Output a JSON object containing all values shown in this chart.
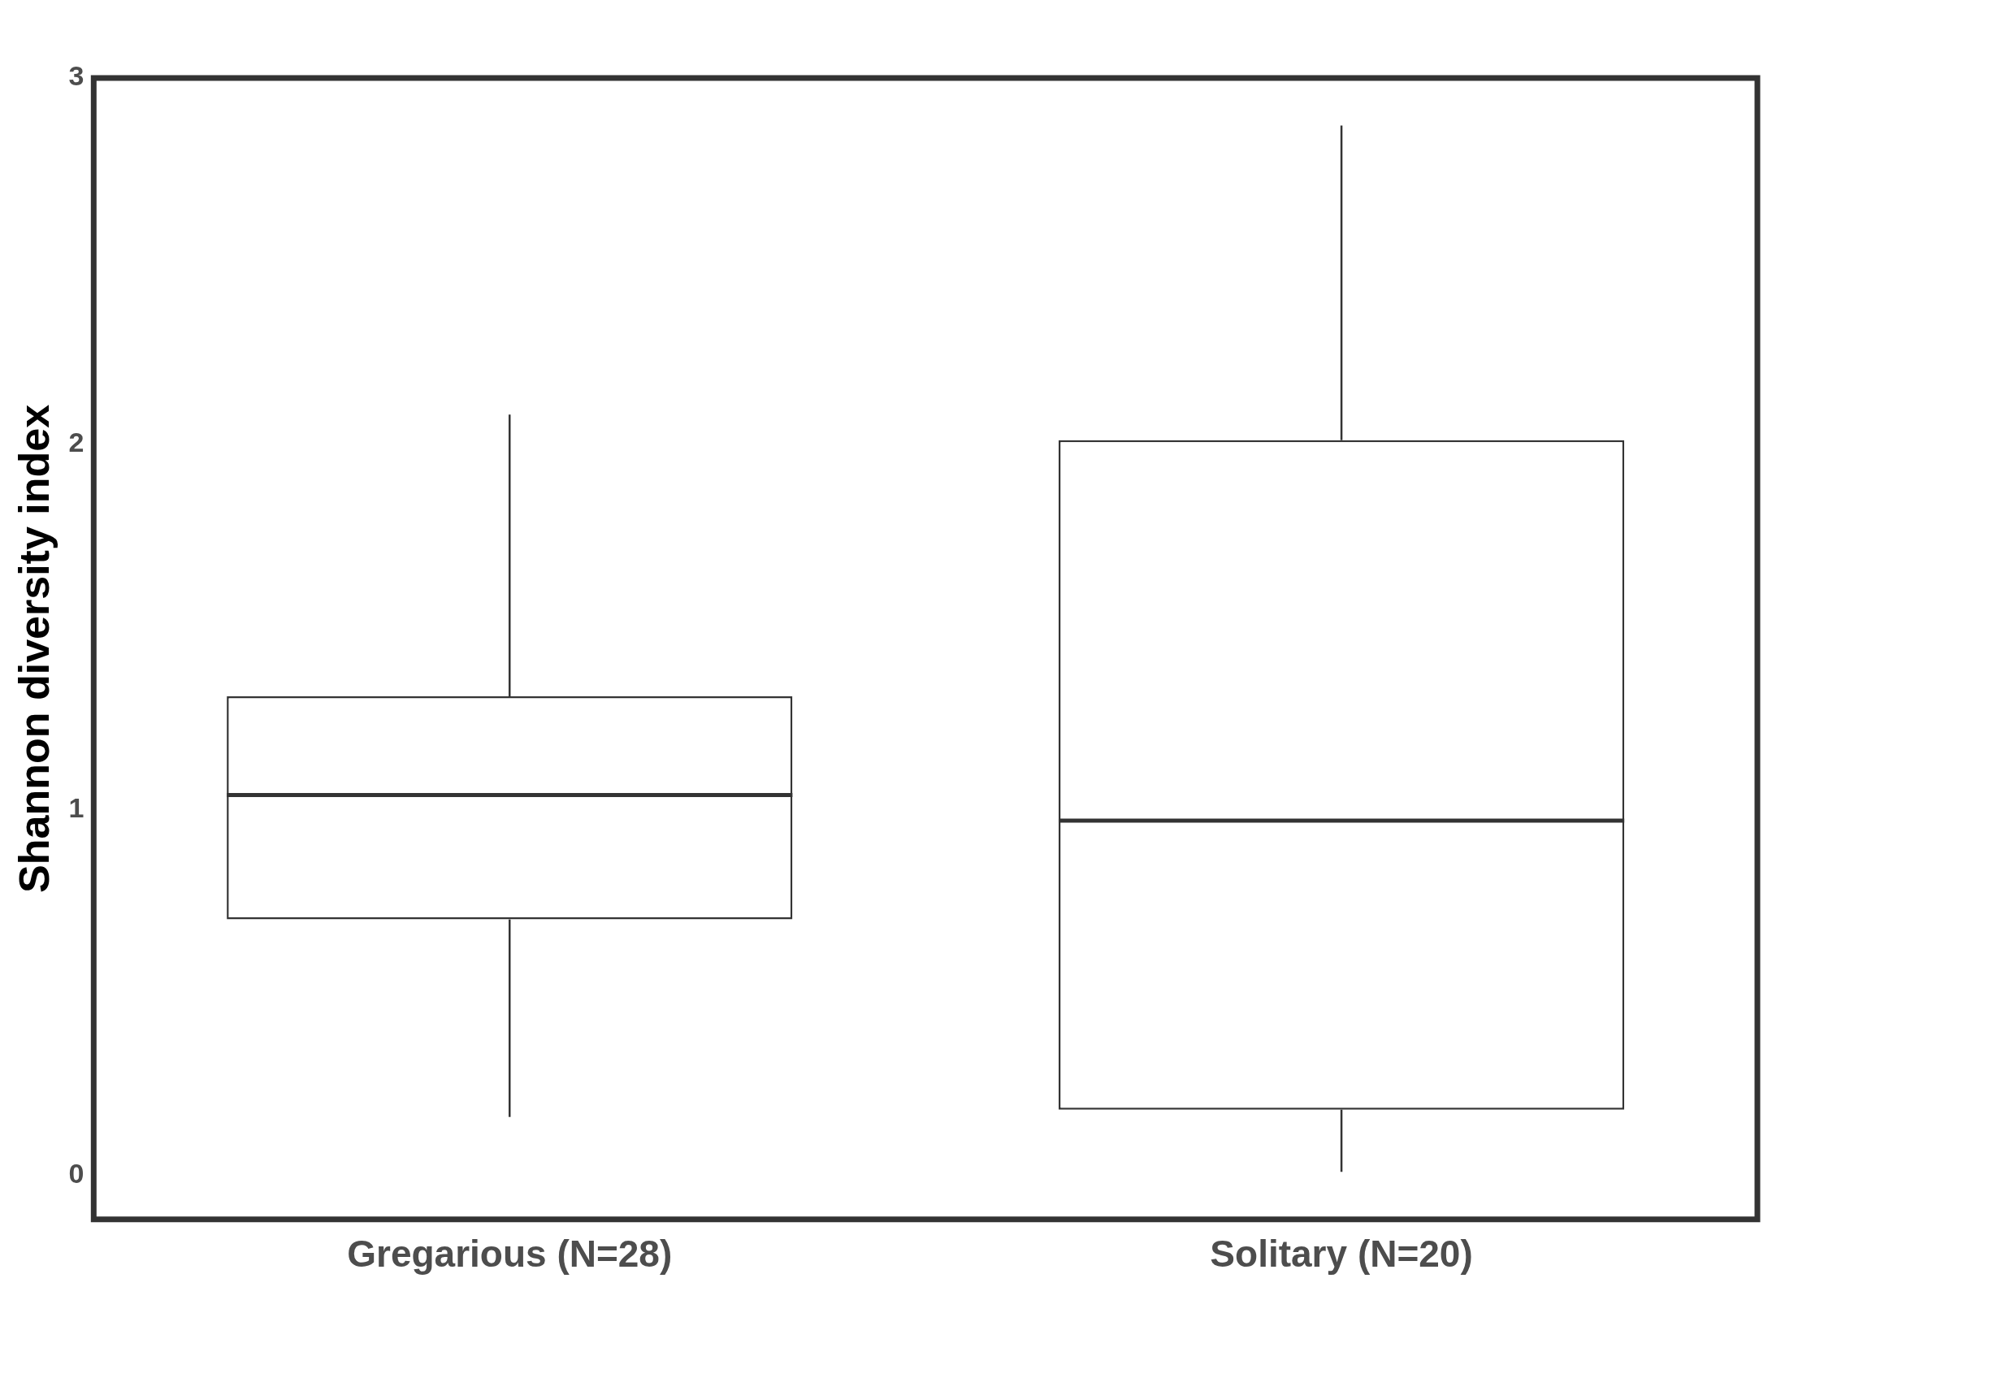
{
  "chart_data": {
    "type": "box",
    "ylabel": "Shannon diversity index",
    "categories": [
      "Gregarious (N=28)",
      "Solitary (N=20)"
    ],
    "color": "#333333",
    "boxes": [
      {
        "low": 0.16,
        "q1": 0.7,
        "median": 1.04,
        "q3": 1.31,
        "high": 2.08
      },
      {
        "low": 0.01,
        "q1": 0.18,
        "median": 0.97,
        "q3": 2.01,
        "high": 2.87
      }
    ],
    "ylim": [
      -0.12,
      3
    ],
    "yticks": [
      0,
      1,
      2,
      3
    ]
  }
}
